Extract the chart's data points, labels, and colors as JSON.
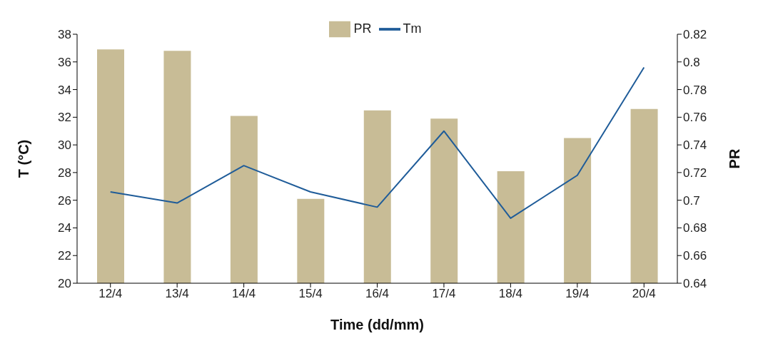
{
  "chart_data": {
    "type": "bar",
    "xlabel": "Time (dd/mm)",
    "ylabel": "T (°C)",
    "y2label": "PR",
    "categories": [
      "12/4",
      "13/4",
      "14/4",
      "15/4",
      "16/4",
      "17/4",
      "18/4",
      "19/4",
      "20/4"
    ],
    "series": [
      {
        "name": "PR",
        "axis": "y2",
        "color": "#c8bc96",
        "values": [
          0.809,
          0.808,
          0.761,
          0.701,
          0.765,
          0.759,
          0.721,
          0.745,
          0.766
        ]
      },
      {
        "name": "Tm",
        "type": "line",
        "axis": "y",
        "color": "#1f5c99",
        "values": [
          26.6,
          25.8,
          28.5,
          26.6,
          25.5,
          31.0,
          24.7,
          27.8,
          35.6
        ]
      }
    ],
    "ylim": [
      20,
      38
    ],
    "yticks": [
      20,
      22,
      24,
      26,
      28,
      30,
      32,
      34,
      36,
      38
    ],
    "y2lim": [
      0.64,
      0.82
    ],
    "y2ticks": [
      0.64,
      0.66,
      0.68,
      0.7,
      0.72,
      0.74,
      0.76,
      0.78,
      0.8,
      0.82
    ],
    "legend": "top",
    "grid": false
  }
}
